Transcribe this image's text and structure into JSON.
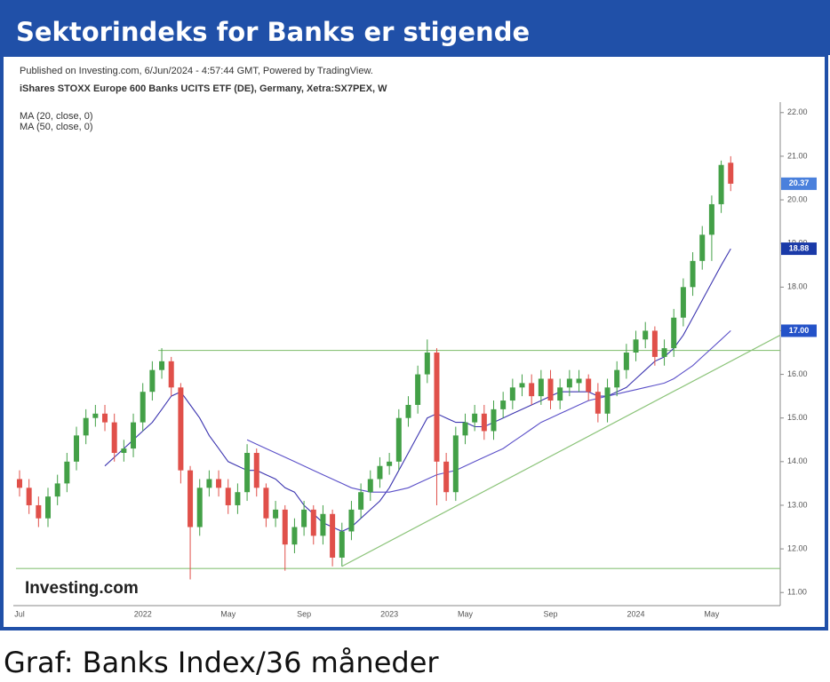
{
  "header": "Sektorindeks for Banks er stigende",
  "caption": "Graf: Banks Index/36 måneder",
  "chart_data": {
    "type": "candlestick",
    "published": "Published on Investing.com, 6/Jun/2024 - 4:57:44 GMT, Powered by TradingView.",
    "instrument": "iShares STOXX Europe 600 Banks UCITS ETF (DE), Germany, Xetra:SX7PEX, W",
    "logo": "Investing.com",
    "categories": [
      "Jul",
      null,
      null,
      null,
      null,
      null,
      null,
      null,
      null,
      null,
      null,
      null,
      null,
      "2022",
      null,
      null,
      null,
      null,
      null,
      null,
      null,
      null,
      "May",
      null,
      null,
      null,
      null,
      null,
      null,
      null,
      "Sep",
      null,
      null,
      null,
      null,
      null,
      null,
      null,
      null,
      "2023",
      null,
      null,
      null,
      null,
      null,
      null,
      null,
      "May",
      null,
      null,
      null,
      null,
      null,
      null,
      null,
      null,
      "Sep",
      null,
      null,
      null,
      null,
      null,
      null,
      null,
      null,
      "2024",
      null,
      null,
      null,
      null,
      null,
      null,
      null,
      "May",
      null,
      null
    ],
    "open": [
      13.6,
      13.4,
      13.0,
      12.7,
      13.2,
      13.5,
      14.0,
      14.6,
      15.0,
      15.1,
      14.9,
      14.2,
      14.3,
      14.9,
      15.6,
      16.1,
      16.3,
      15.7,
      13.8,
      12.5,
      13.4,
      13.6,
      13.4,
      13.0,
      13.3,
      14.2,
      13.4,
      12.7,
      12.9,
      12.1,
      12.5,
      12.9,
      12.3,
      12.8,
      11.8,
      12.4,
      12.9,
      13.3,
      13.6,
      13.9,
      14.0,
      15.0,
      15.3,
      16.0,
      16.5,
      14.0,
      13.3,
      14.6,
      14.9,
      15.1,
      14.7,
      15.2,
      15.4,
      15.7,
      15.8,
      15.5,
      15.9,
      15.4,
      15.7,
      15.8,
      15.9,
      15.6,
      15.1,
      15.7,
      16.1,
      16.5,
      16.8,
      17.0,
      16.4,
      16.6,
      17.3,
      18.0,
      18.6,
      19.2,
      19.9,
      20.85
    ],
    "high": [
      13.8,
      13.6,
      13.2,
      13.4,
      13.7,
      14.2,
      14.8,
      15.2,
      15.3,
      15.3,
      15.1,
      14.5,
      15.1,
      15.8,
      16.3,
      16.6,
      16.4,
      15.8,
      13.9,
      13.6,
      13.8,
      13.8,
      13.6,
      13.5,
      14.4,
      14.3,
      13.5,
      13.1,
      13.0,
      12.7,
      13.1,
      13.0,
      13.0,
      12.9,
      12.6,
      13.1,
      13.5,
      13.8,
      14.1,
      14.2,
      15.2,
      15.5,
      16.2,
      16.8,
      16.6,
      14.2,
      14.8,
      15.1,
      15.3,
      15.3,
      15.4,
      15.6,
      15.9,
      16.0,
      16.0,
      16.1,
      16.1,
      15.9,
      16.1,
      16.1,
      16.0,
      15.8,
      15.9,
      16.3,
      16.7,
      17.0,
      17.2,
      17.1,
      16.8,
      17.5,
      18.2,
      18.8,
      19.4,
      20.1,
      20.9,
      21.0
    ],
    "low": [
      13.2,
      12.8,
      12.5,
      12.5,
      13.0,
      13.3,
      13.8,
      14.4,
      14.8,
      14.7,
      14.0,
      14.0,
      14.1,
      14.7,
      15.4,
      15.9,
      15.5,
      13.5,
      11.3,
      12.3,
      13.2,
      13.2,
      12.8,
      12.8,
      13.1,
      13.2,
      12.5,
      12.5,
      11.5,
      11.9,
      12.3,
      12.1,
      12.1,
      11.6,
      11.6,
      12.2,
      12.7,
      13.1,
      13.4,
      13.7,
      13.8,
      14.8,
      15.1,
      15.8,
      13.0,
      13.1,
      13.1,
      14.4,
      14.7,
      14.5,
      14.5,
      15.0,
      15.2,
      15.5,
      15.3,
      15.3,
      15.2,
      15.2,
      15.5,
      15.6,
      15.4,
      14.9,
      14.9,
      15.5,
      15.9,
      16.3,
      16.6,
      16.2,
      16.2,
      16.4,
      17.1,
      17.8,
      18.4,
      18.6,
      19.7,
      20.2
    ],
    "close": [
      13.4,
      13.0,
      12.7,
      13.2,
      13.5,
      14.0,
      14.6,
      15.0,
      15.1,
      14.9,
      14.2,
      14.3,
      14.9,
      15.6,
      16.1,
      16.3,
      15.7,
      13.8,
      12.5,
      13.4,
      13.6,
      13.4,
      13.0,
      13.3,
      14.2,
      13.4,
      12.7,
      12.9,
      12.1,
      12.5,
      12.9,
      12.3,
      12.8,
      11.8,
      12.4,
      12.9,
      13.3,
      13.6,
      13.9,
      14.0,
      15.0,
      15.3,
      16.0,
      16.5,
      14.0,
      13.3,
      14.6,
      14.9,
      15.1,
      14.7,
      15.2,
      15.4,
      15.7,
      15.8,
      15.5,
      15.9,
      15.4,
      15.7,
      15.9,
      15.9,
      15.6,
      15.1,
      15.7,
      16.1,
      16.5,
      16.8,
      17.0,
      16.4,
      16.6,
      17.3,
      18.0,
      18.6,
      19.2,
      19.9,
      20.8,
      20.37
    ],
    "last_label": "20.37",
    "last_color": "#4a80dc",
    "up_color": "#43a047",
    "down_color": "#e0504a",
    "series": [
      {
        "name": "MA (20, close, 0)",
        "color": "#3c35b0",
        "last_label": "18.88",
        "last_color": "#1a3aa8",
        "values": [
          null,
          null,
          null,
          null,
          null,
          null,
          null,
          null,
          null,
          13.9,
          14.1,
          14.3,
          14.5,
          14.7,
          14.9,
          15.2,
          15.5,
          15.6,
          15.3,
          15.0,
          14.6,
          14.3,
          14.0,
          13.9,
          13.8,
          13.8,
          13.7,
          13.6,
          13.4,
          13.3,
          13.0,
          12.8,
          12.6,
          12.5,
          12.4,
          12.5,
          12.7,
          12.9,
          13.1,
          13.4,
          13.8,
          14.2,
          14.6,
          15.0,
          15.1,
          15.0,
          14.9,
          14.9,
          14.8,
          14.8,
          14.9,
          15.0,
          15.1,
          15.2,
          15.3,
          15.4,
          15.5,
          15.6,
          15.6,
          15.6,
          15.6,
          15.5,
          15.5,
          15.6,
          15.7,
          15.9,
          16.1,
          16.3,
          16.4,
          16.6,
          16.9,
          17.3,
          17.7,
          18.1,
          18.5,
          18.88
        ]
      },
      {
        "name": "MA (50, close, 0)",
        "color": "#5a4fc8",
        "last_label": "17.00",
        "last_color": "#2452c8",
        "values": [
          null,
          null,
          null,
          null,
          null,
          null,
          null,
          null,
          null,
          null,
          null,
          null,
          null,
          null,
          null,
          null,
          null,
          null,
          null,
          null,
          null,
          null,
          null,
          null,
          14.5,
          14.4,
          14.3,
          14.2,
          14.1,
          14.0,
          13.9,
          13.8,
          13.7,
          13.6,
          13.5,
          13.4,
          13.35,
          13.3,
          13.3,
          13.3,
          13.35,
          13.4,
          13.5,
          13.6,
          13.7,
          13.75,
          13.8,
          13.9,
          14.0,
          14.1,
          14.2,
          14.3,
          14.45,
          14.6,
          14.75,
          14.9,
          15.0,
          15.1,
          15.2,
          15.3,
          15.4,
          15.45,
          15.5,
          15.55,
          15.6,
          15.65,
          15.7,
          15.75,
          15.8,
          15.9,
          16.05,
          16.2,
          16.4,
          16.6,
          16.8,
          17.0
        ]
      }
    ],
    "ylim": [
      10.74,
      22.24
    ],
    "yticks": [
      {
        "value": 11,
        "label": "11.00"
      },
      {
        "value": 12,
        "label": "12.00"
      },
      {
        "value": 13,
        "label": "13.00"
      },
      {
        "value": 14,
        "label": "14.00"
      },
      {
        "value": 15,
        "label": "15.00"
      },
      {
        "value": 16,
        "label": "16.00"
      },
      {
        "value": 17,
        "label": "17.00"
      },
      {
        "value": 18,
        "label": "18.00"
      },
      {
        "value": 19,
        "label": "19.00"
      },
      {
        "value": 20,
        "label": "20.00"
      },
      {
        "value": 21,
        "label": "21.00"
      },
      {
        "value": 22,
        "label": "22.00"
      }
    ],
    "hlines": [
      {
        "value": 16.55,
        "start": 15
      },
      {
        "value": 11.55,
        "start": 0
      }
    ],
    "trendline": {
      "start": [
        34,
        11.6
      ],
      "end": [
        75,
        16.3
      ]
    },
    "line_color": "#8cc47a"
  }
}
